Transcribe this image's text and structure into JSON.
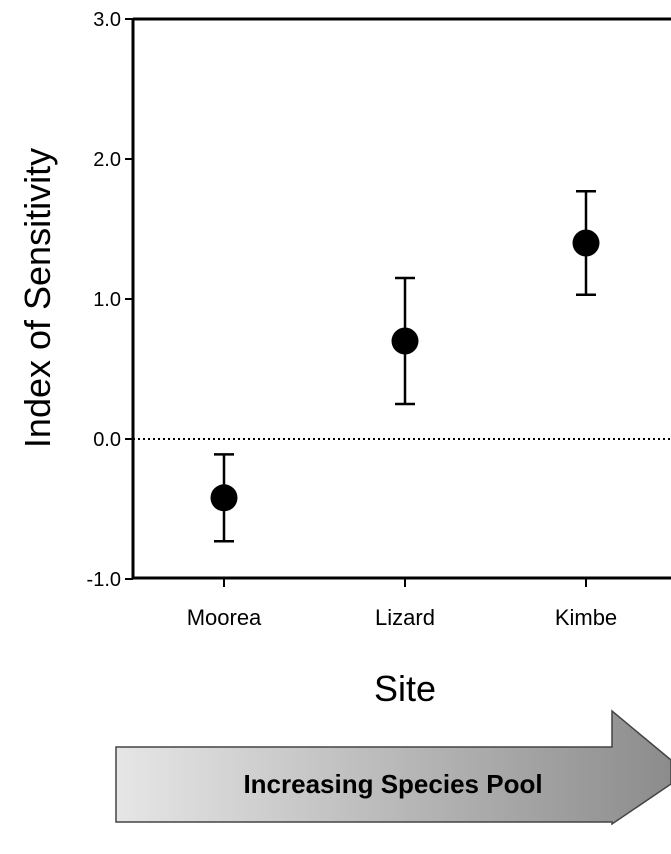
{
  "chart_data": {
    "type": "scatter",
    "categories": [
      "Moorea",
      "Lizard",
      "Kimbe"
    ],
    "series": [
      {
        "values": [
          -0.42,
          0.7,
          1.4
        ],
        "error_low": [
          -0.73,
          0.25,
          1.03
        ],
        "error_high": [
          -0.11,
          1.15,
          1.77
        ]
      }
    ],
    "xlabel": "Site",
    "ylabel": "Index of Sensitivity",
    "ylim": [
      -1.0,
      3.0
    ],
    "yticks": [
      "-1.0",
      "0.0",
      "1.0",
      "2.0",
      "3.0"
    ],
    "yticks_values": [
      -1.0,
      0.0,
      1.0,
      2.0,
      3.0
    ],
    "reference_line": 0.0,
    "grid": false
  },
  "annotation": {
    "arrow_label": "Increasing Species Pool"
  },
  "colors": {
    "marker": "#000000",
    "arrow_fill_light": "#e6e6e6",
    "arrow_fill_dark": "#8c8c8c"
  }
}
